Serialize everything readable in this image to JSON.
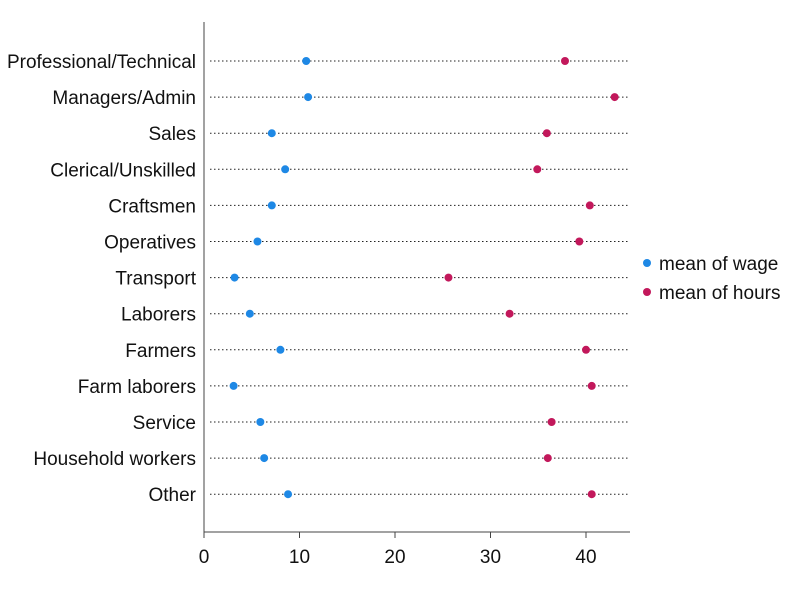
{
  "chart_data": {
    "type": "scatter",
    "orientation": "horizontal-dot",
    "categories": [
      "Professional/Technical",
      "Managers/Admin",
      "Sales",
      "Clerical/Unskilled",
      "Craftsmen",
      "Operatives",
      "Transport",
      "Laborers",
      "Farmers",
      "Farm laborers",
      "Service",
      "Household workers",
      "Other"
    ],
    "series": [
      {
        "name": "mean of wage",
        "color": "#1e88e5",
        "values": [
          10.7,
          10.9,
          7.1,
          8.5,
          7.1,
          5.6,
          3.2,
          4.8,
          8.0,
          3.1,
          5.9,
          6.3,
          8.8
        ]
      },
      {
        "name": "mean of hours",
        "color": "#c2185b",
        "values": [
          37.8,
          43.0,
          35.9,
          34.9,
          40.4,
          39.3,
          25.6,
          32.0,
          40.0,
          40.6,
          36.4,
          36.0,
          40.6
        ]
      }
    ],
    "xticks": [
      0,
      10,
      20,
      30,
      40
    ],
    "xlim": [
      0,
      44.6
    ],
    "grid": "dotted-horizontal",
    "legend": "right",
    "xlabel": "",
    "ylabel": "",
    "title": ""
  }
}
